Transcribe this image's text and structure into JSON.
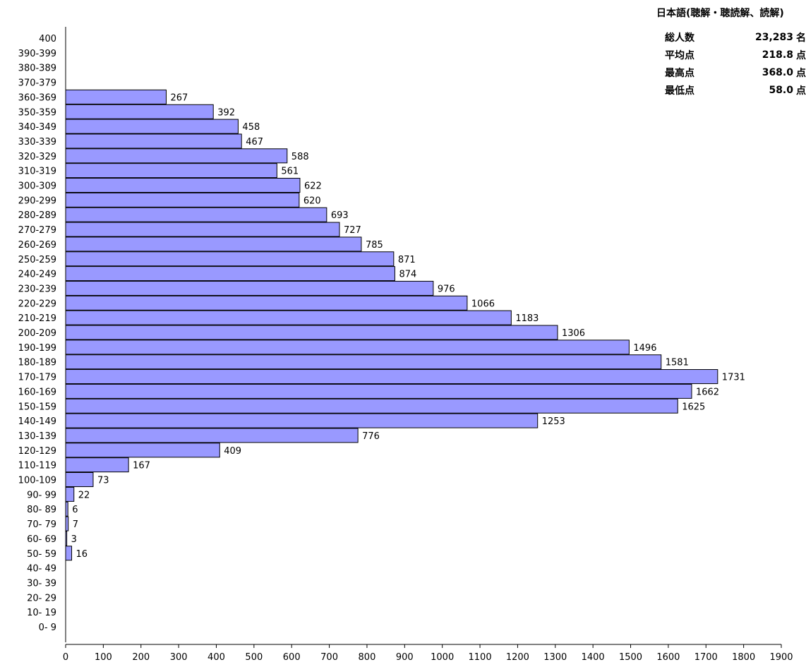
{
  "chart_data": {
    "type": "bar",
    "orientation": "horizontal",
    "title": "日本語(聴解・聴読解、読解)",
    "categories": [
      "400",
      "390-399",
      "380-389",
      "370-379",
      "360-369",
      "350-359",
      "340-349",
      "330-339",
      "320-329",
      "310-319",
      "300-309",
      "290-299",
      "280-289",
      "270-279",
      "260-269",
      "250-259",
      "240-249",
      "230-239",
      "220-229",
      "210-219",
      "200-209",
      "190-199",
      "180-189",
      "170-179",
      "160-169",
      "150-159",
      "140-149",
      "130-139",
      "120-129",
      "110-119",
      "100-109",
      "90- 99",
      "80- 89",
      "70- 79",
      "60- 69",
      "50- 59",
      "40- 49",
      "30- 39",
      "20- 29",
      "10- 19",
      "0- 9"
    ],
    "values": [
      null,
      null,
      null,
      null,
      267,
      392,
      458,
      467,
      588,
      561,
      622,
      620,
      693,
      727,
      785,
      871,
      874,
      976,
      1066,
      1183,
      1306,
      1496,
      1581,
      1731,
      1662,
      1625,
      1253,
      776,
      409,
      167,
      73,
      22,
      6,
      7,
      3,
      16,
      null,
      null,
      null,
      null,
      null
    ],
    "xlim": [
      0,
      1900
    ],
    "x_ticks": [
      0,
      100,
      200,
      300,
      400,
      500,
      600,
      700,
      800,
      900,
      1000,
      1100,
      1200,
      1300,
      1400,
      1500,
      1600,
      1700,
      1800,
      1900
    ],
    "bar_color": "#9999ff",
    "grid": false,
    "xlabel": "",
    "ylabel": ""
  },
  "stats": {
    "title": "日本語(聴解・聴読解、読解)",
    "rows": [
      {
        "label": "総人数",
        "value": "23,283",
        "unit": "名"
      },
      {
        "label": "平均点",
        "value": "218.8",
        "unit": "点"
      },
      {
        "label": "最高点",
        "value": "368.0",
        "unit": "点"
      },
      {
        "label": "最低点",
        "value": "58.0",
        "unit": "点"
      }
    ]
  }
}
